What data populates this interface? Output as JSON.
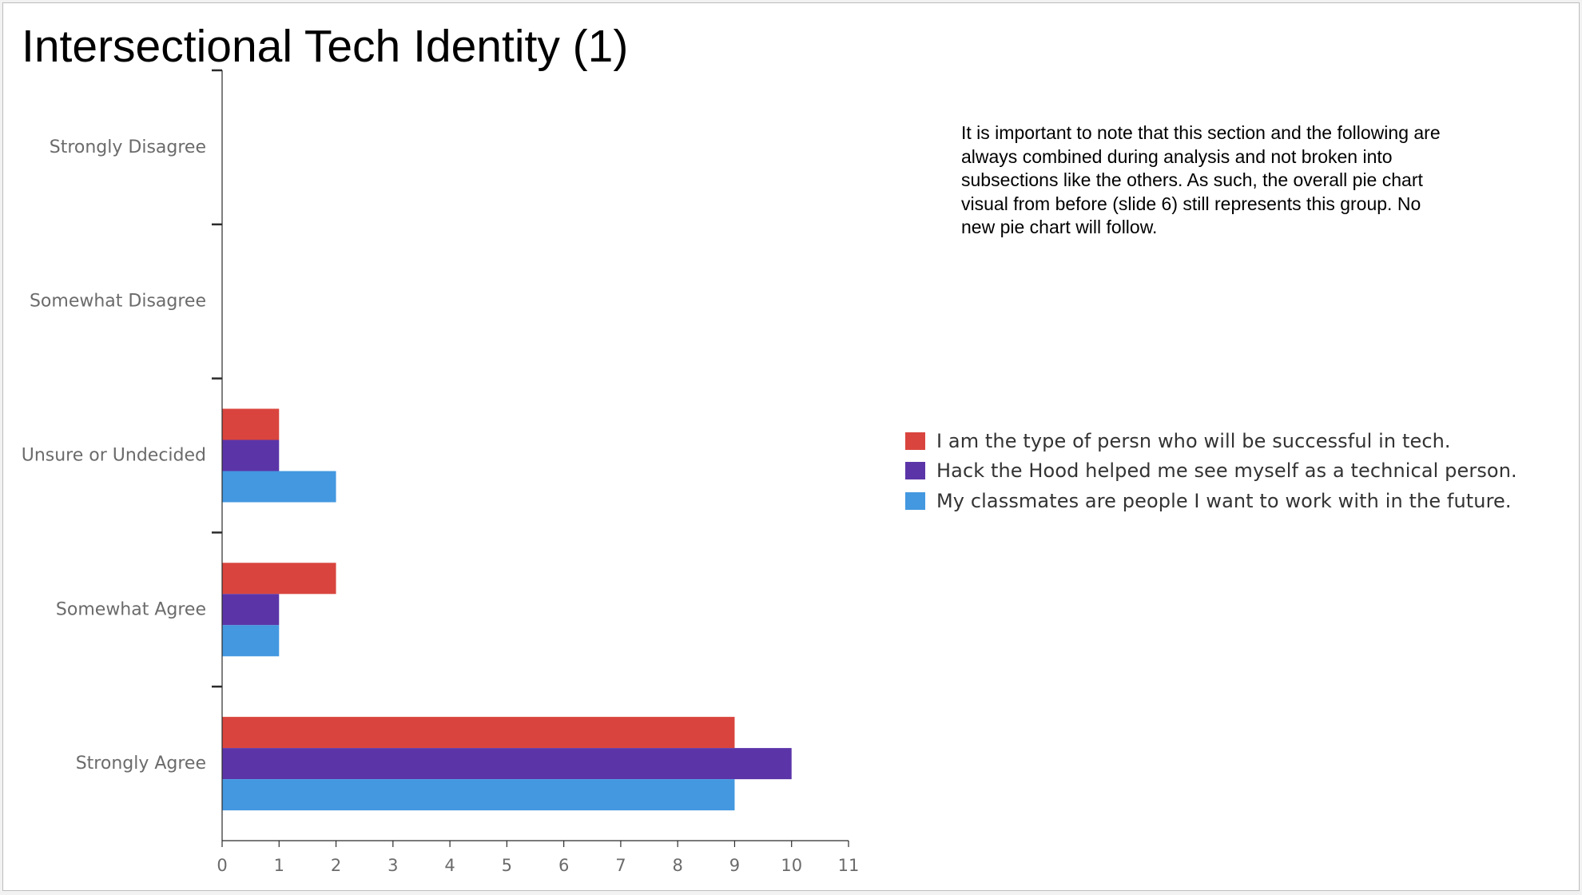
{
  "slide": {
    "title": "Intersectional Tech Identity (1)",
    "note": "It is important to note that this section and the following are always combined during analysis and not broken into subsections like the others. As such, the overall pie chart visual from before (slide 6) still represents this group. No new pie chart will follow."
  },
  "chart_data": {
    "type": "bar",
    "orientation": "horizontal",
    "title": "",
    "xlabel": "",
    "ylabel": "",
    "categories": [
      "Strongly Disagree",
      "Somewhat Disagree",
      "Unsure or Undecided",
      "Somewhat Agree",
      "Strongly Agree"
    ],
    "series": [
      {
        "name": "I am the type of persn who will be successful in tech.",
        "color": "#d9453e",
        "values": [
          0,
          0,
          1,
          2,
          9
        ]
      },
      {
        "name": "Hack the Hood helped me see myself as a technical person.",
        "color": "#5b35a8",
        "values": [
          0,
          0,
          1,
          1,
          10
        ]
      },
      {
        "name": "My classmates are people I want to work with in the future.",
        "color": "#4398e0",
        "values": [
          0,
          0,
          2,
          1,
          9
        ]
      }
    ],
    "xlim": [
      0,
      11
    ],
    "xticks": [
      0,
      1,
      2,
      3,
      4,
      5,
      6,
      7,
      8,
      9,
      10,
      11
    ],
    "grid": false,
    "legend_position": "right"
  }
}
